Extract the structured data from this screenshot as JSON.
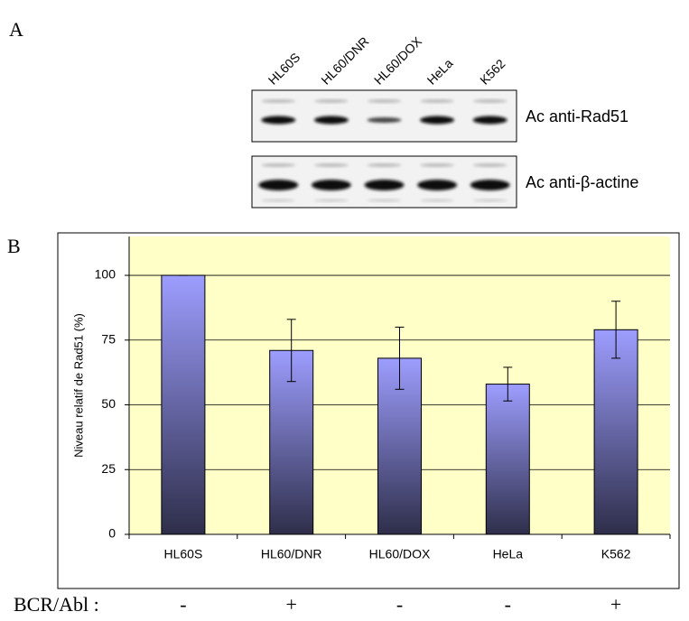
{
  "panel_a": {
    "label": "A",
    "lanes": [
      "HL60S",
      "HL60/DNR",
      "HL60/DOX",
      "HeLa",
      "K562"
    ],
    "blots": [
      "Ac anti-Rad51",
      "Ac anti-β-actine"
    ]
  },
  "panel_b_label": "B",
  "chart_data": {
    "type": "bar",
    "y_label": "Niveau relatif de Rad51 (%)",
    "categories": [
      "HL60S",
      "HL60/DNR",
      "HL60/DOX",
      "HeLa",
      "K562"
    ],
    "values": [
      100,
      71,
      68,
      58,
      79
    ],
    "errors": [
      0,
      12,
      12,
      6.5,
      11
    ],
    "ylim": [
      0,
      115
    ],
    "yticks": [
      0,
      25,
      50,
      75,
      100
    ],
    "grid": true
  },
  "bcr_abl": {
    "label": "BCR/Abl :",
    "values": [
      "-",
      "+",
      "-",
      "-",
      "+"
    ]
  }
}
